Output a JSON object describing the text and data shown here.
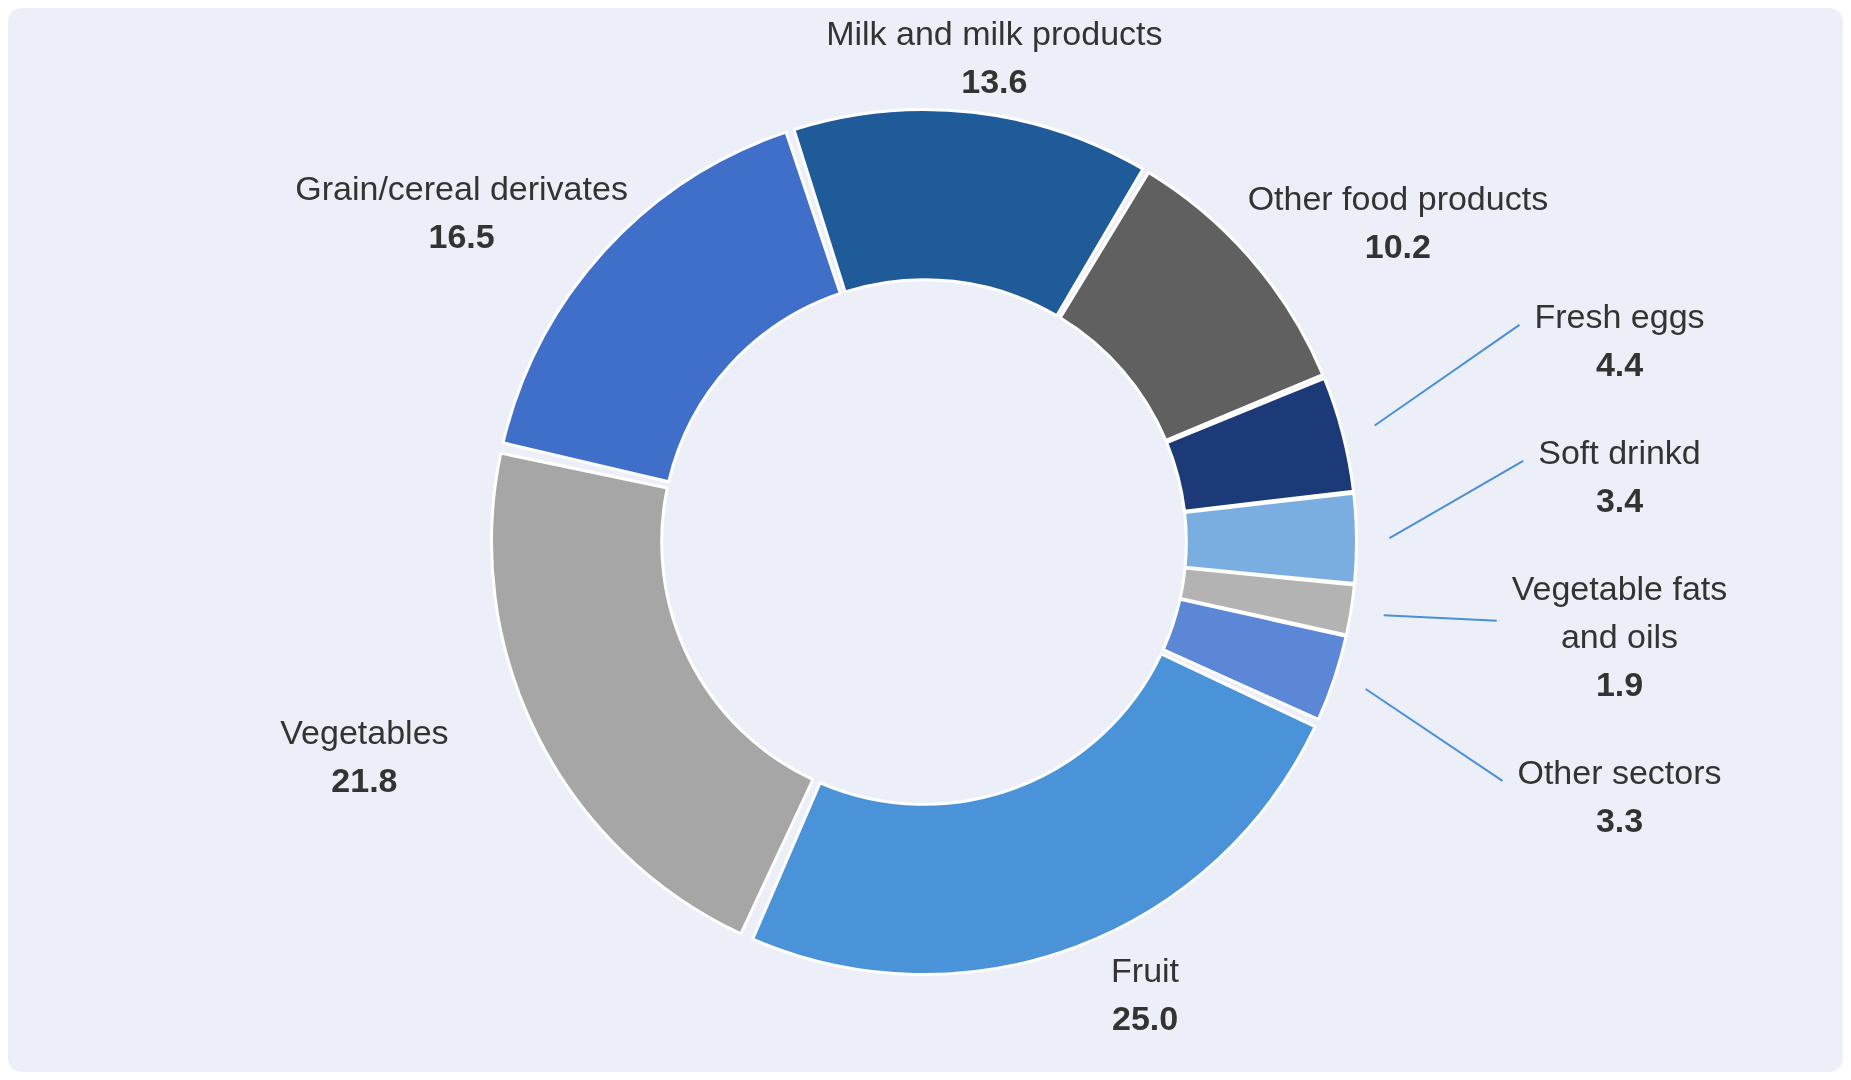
{
  "chart_data": {
    "type": "donut",
    "categories": [
      "Milk and milk products",
      "Other food products",
      "Fresh eggs",
      "Soft drinkd",
      "Vegetable fats and oils",
      "Other sectors",
      "Fruit",
      "Vegetables",
      "Grain/cereal derivates"
    ],
    "values": [
      13.6,
      10.2,
      4.4,
      3.4,
      1.9,
      3.3,
      25.0,
      21.8,
      16.5
    ],
    "value_labels": [
      "13.6",
      "10.2",
      "4.4",
      "3.4",
      "1.9",
      "3.3",
      "25.0",
      "21.8",
      "16.5"
    ],
    "colors": [
      "#1f5b99",
      "#606060",
      "#1c3a78",
      "#7aaee0",
      "#b3b3b3",
      "#5b87d6",
      "#4b93d8",
      "#a6a6a6",
      "#3f6fc9"
    ],
    "legend": false
  }
}
